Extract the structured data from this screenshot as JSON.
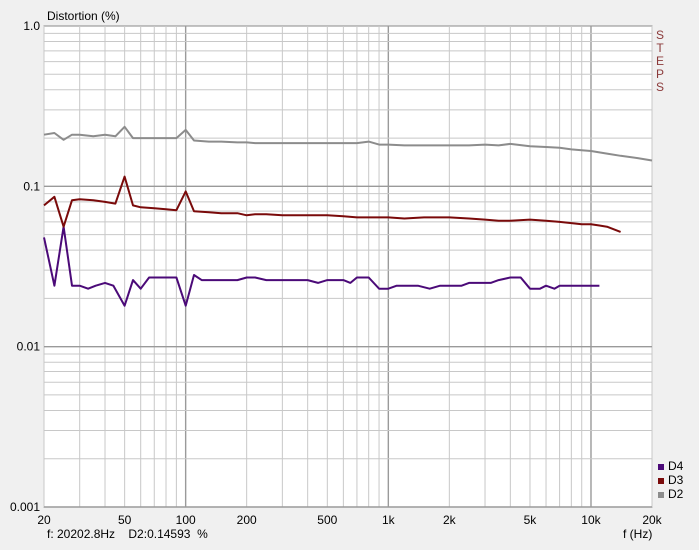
{
  "chart_data": {
    "type": "line",
    "title": "Distortion (%)",
    "xlabel": "f (Hz)",
    "ylabel": "",
    "x_scale": "log",
    "y_scale": "log",
    "xlim": [
      20,
      20000
    ],
    "ylim": [
      0.001,
      1.0
    ],
    "grid": true,
    "legend": "bottom-right",
    "side_label": "STEPS",
    "x_tick_labels": [
      {
        "v": 20,
        "t": "20"
      },
      {
        "v": 50,
        "t": "50"
      },
      {
        "v": 100,
        "t": "100"
      },
      {
        "v": 200,
        "t": "200"
      },
      {
        "v": 500,
        "t": "500"
      },
      {
        "v": 1000,
        "t": "1k"
      },
      {
        "v": 2000,
        "t": "2k"
      },
      {
        "v": 5000,
        "t": "5k"
      },
      {
        "v": 10000,
        "t": "10k"
      },
      {
        "v": 20000,
        "t": "20k"
      }
    ],
    "y_tick_labels": [
      {
        "v": 1.0,
        "t": "1.0"
      },
      {
        "v": 0.1,
        "t": "0.1"
      },
      {
        "v": 0.01,
        "t": "0.01"
      },
      {
        "v": 0.001,
        "t": "0.001"
      }
    ],
    "series": [
      {
        "name": "D4",
        "color": "#4b0a78",
        "x": [
          20,
          22.5,
          25,
          27.5,
          30,
          33,
          36,
          40,
          44,
          50,
          55,
          60,
          66,
          80,
          90,
          100,
          110,
          120,
          150,
          180,
          200,
          220,
          250,
          280,
          300,
          350,
          400,
          450,
          500,
          550,
          600,
          650,
          700,
          800,
          900,
          1000,
          1100,
          1200,
          1400,
          1600,
          1800,
          2000,
          2300,
          2500,
          2800,
          3200,
          3500,
          4000,
          4500,
          5000,
          5600,
          6000,
          6600,
          7000,
          8000,
          9000,
          10000,
          11000
        ],
        "y": [
          0.048,
          0.024,
          0.056,
          0.024,
          0.024,
          0.023,
          0.024,
          0.025,
          0.024,
          0.018,
          0.026,
          0.023,
          0.027,
          0.027,
          0.027,
          0.018,
          0.028,
          0.026,
          0.026,
          0.026,
          0.027,
          0.027,
          0.026,
          0.026,
          0.026,
          0.026,
          0.026,
          0.025,
          0.026,
          0.026,
          0.026,
          0.025,
          0.027,
          0.027,
          0.023,
          0.023,
          0.024,
          0.024,
          0.024,
          0.023,
          0.024,
          0.024,
          0.024,
          0.025,
          0.025,
          0.025,
          0.026,
          0.027,
          0.027,
          0.023,
          0.023,
          0.024,
          0.023,
          0.024,
          0.024,
          0.024,
          0.024,
          0.024
        ]
      },
      {
        "name": "D3",
        "color": "#7a0a0a",
        "x": [
          20,
          22.5,
          25,
          27.5,
          30,
          35,
          40,
          45,
          50,
          55,
          60,
          70,
          80,
          90,
          100,
          110,
          130,
          150,
          180,
          200,
          220,
          250,
          300,
          400,
          500,
          600,
          700,
          800,
          1000,
          1200,
          1500,
          2000,
          2500,
          3000,
          3500,
          4000,
          5000,
          6000,
          7000,
          8000,
          9000,
          10000,
          11000,
          12000,
          14000
        ],
        "y": [
          0.076,
          0.086,
          0.056,
          0.082,
          0.083,
          0.082,
          0.08,
          0.078,
          0.115,
          0.076,
          0.074,
          0.073,
          0.072,
          0.071,
          0.093,
          0.07,
          0.069,
          0.068,
          0.068,
          0.066,
          0.067,
          0.067,
          0.066,
          0.066,
          0.066,
          0.065,
          0.064,
          0.064,
          0.064,
          0.063,
          0.064,
          0.064,
          0.063,
          0.062,
          0.061,
          0.061,
          0.062,
          0.061,
          0.06,
          0.059,
          0.058,
          0.058,
          0.057,
          0.056,
          0.052
        ]
      },
      {
        "name": "D2",
        "color": "#8c8c8c",
        "x": [
          20,
          22.5,
          25,
          27.5,
          30,
          35,
          40,
          45,
          50,
          55,
          60,
          70,
          80,
          90,
          100,
          110,
          130,
          150,
          180,
          200,
          220,
          250,
          300,
          400,
          500,
          600,
          700,
          800,
          900,
          1000,
          1200,
          1500,
          2000,
          2500,
          3000,
          3500,
          4000,
          5000,
          6000,
          7000,
          8000,
          9000,
          10000,
          12000,
          14000,
          17000,
          20000
        ],
        "y": [
          0.21,
          0.215,
          0.195,
          0.21,
          0.21,
          0.205,
          0.21,
          0.205,
          0.235,
          0.2,
          0.2,
          0.2,
          0.2,
          0.2,
          0.225,
          0.193,
          0.19,
          0.19,
          0.188,
          0.188,
          0.186,
          0.186,
          0.186,
          0.186,
          0.186,
          0.186,
          0.186,
          0.19,
          0.182,
          0.182,
          0.18,
          0.18,
          0.18,
          0.18,
          0.182,
          0.18,
          0.184,
          0.178,
          0.176,
          0.174,
          0.17,
          0.168,
          0.166,
          0.16,
          0.155,
          0.15,
          0.145
        ]
      }
    ]
  },
  "readout": {
    "freq": "f: 20202.8Hz",
    "value": "D2:0.14593",
    "unit": "%"
  }
}
